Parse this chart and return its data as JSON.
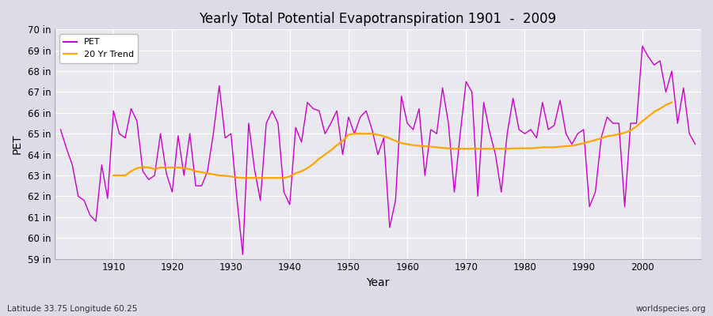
{
  "title": "Yearly Total Potential Evapotranspiration 1901  -  2009",
  "xlabel": "Year",
  "ylabel": "PET",
  "subtitle_lat_lon": "Latitude 33.75 Longitude 60.25",
  "watermark": "worldspecies.org",
  "ylim": [
    59,
    70
  ],
  "yticks": [
    59,
    60,
    61,
    62,
    63,
    64,
    65,
    66,
    67,
    68,
    69,
    70
  ],
  "ytick_labels": [
    "59 in",
    "60 in",
    "61 in",
    "62 in",
    "63 in",
    "64 in",
    "65 in",
    "66 in",
    "67 in",
    "68 in",
    "69 in",
    "70 in"
  ],
  "pet_color": "#CC00CC",
  "trend_color": "#FFA500",
  "bg_color": "#E8E8EE",
  "fig_bg_color": "#DCDCE8",
  "pet_years": [
    1901,
    1902,
    1903,
    1904,
    1905,
    1906,
    1907,
    1908,
    1909,
    1910,
    1911,
    1912,
    1913,
    1914,
    1915,
    1916,
    1917,
    1918,
    1919,
    1920,
    1921,
    1922,
    1923,
    1924,
    1925,
    1926,
    1927,
    1928,
    1929,
    1930,
    1931,
    1932,
    1933,
    1934,
    1935,
    1936,
    1937,
    1938,
    1939,
    1940,
    1941,
    1942,
    1943,
    1944,
    1945,
    1946,
    1947,
    1948,
    1949,
    1950,
    1951,
    1952,
    1953,
    1954,
    1955,
    1956,
    1957,
    1958,
    1959,
    1960,
    1961,
    1962,
    1963,
    1964,
    1965,
    1966,
    1967,
    1968,
    1969,
    1970,
    1971,
    1972,
    1973,
    1974,
    1975,
    1976,
    1977,
    1978,
    1979,
    1980,
    1981,
    1982,
    1983,
    1984,
    1985,
    1986,
    1987,
    1988,
    1989,
    1990,
    1991,
    1992,
    1993,
    1994,
    1995,
    1996,
    1997,
    1998,
    1999,
    2000,
    2001,
    2002,
    2003,
    2004,
    2005,
    2006,
    2007,
    2008,
    2009
  ],
  "pet_values": [
    65.2,
    64.3,
    63.5,
    62.0,
    61.8,
    61.1,
    60.8,
    63.5,
    61.9,
    66.1,
    65.0,
    64.8,
    66.2,
    65.6,
    63.2,
    62.8,
    63.0,
    65.0,
    63.1,
    62.2,
    64.9,
    63.0,
    65.0,
    62.5,
    62.5,
    63.2,
    65.0,
    67.3,
    64.8,
    65.0,
    61.9,
    59.2,
    65.5,
    63.3,
    61.8,
    65.5,
    66.1,
    65.5,
    62.2,
    61.6,
    65.3,
    64.6,
    66.5,
    66.2,
    66.1,
    65.0,
    65.5,
    66.1,
    64.0,
    65.8,
    65.0,
    65.8,
    66.1,
    65.2,
    64.0,
    64.8,
    60.5,
    61.8,
    66.8,
    65.5,
    65.2,
    66.2,
    63.0,
    65.2,
    65.0,
    67.2,
    65.5,
    62.2,
    65.0,
    67.5,
    67.0,
    62.0,
    66.5,
    65.1,
    64.0,
    62.2,
    65.0,
    66.7,
    65.2,
    65.0,
    65.2,
    64.8,
    66.5,
    65.2,
    65.4,
    66.6,
    65.0,
    64.5,
    65.0,
    65.2,
    61.5,
    62.2,
    64.8,
    65.8,
    65.5,
    65.5,
    61.5,
    65.5,
    65.5,
    69.2,
    68.7,
    68.3,
    68.5,
    67.0,
    68.0,
    65.5,
    67.2,
    65.0,
    64.5
  ],
  "trend_years": [
    1910,
    1911,
    1912,
    1913,
    1914,
    1915,
    1916,
    1917,
    1918,
    1919,
    1920,
    1921,
    1922,
    1923,
    1924,
    1925,
    1926,
    1927,
    1928,
    1929,
    1930,
    1931,
    1932,
    1933,
    1934,
    1935,
    1936,
    1937,
    1938,
    1939,
    1940,
    1941,
    1942,
    1943,
    1944,
    1945,
    1946,
    1947,
    1948,
    1949,
    1950,
    1951,
    1952,
    1953,
    1954,
    1955,
    1956,
    1957,
    1958,
    1959,
    1960,
    1961,
    1962,
    1963,
    1964,
    1965,
    1966,
    1967,
    1968,
    1969,
    1970,
    1971,
    1972,
    1973,
    1974,
    1975,
    1976,
    1977,
    1978,
    1979,
    1980,
    1981,
    1982,
    1983,
    1984,
    1985,
    1986,
    1987,
    1988,
    1989,
    1990,
    1991,
    1992,
    1993,
    1994,
    1995,
    1996,
    1997,
    1998,
    1999,
    2000,
    2001,
    2002,
    2003,
    2004,
    2005
  ],
  "trend_values": [
    63.0,
    63.0,
    63.0,
    63.2,
    63.35,
    63.4,
    63.38,
    63.3,
    63.38,
    63.38,
    63.38,
    63.38,
    63.35,
    63.3,
    63.2,
    63.15,
    63.1,
    63.05,
    63.0,
    62.98,
    62.95,
    62.9,
    62.88,
    62.88,
    62.88,
    62.88,
    62.88,
    62.88,
    62.88,
    62.88,
    62.95,
    63.1,
    63.2,
    63.35,
    63.55,
    63.8,
    64.0,
    64.2,
    64.45,
    64.65,
    64.95,
    65.0,
    65.0,
    65.0,
    65.0,
    64.95,
    64.88,
    64.78,
    64.65,
    64.55,
    64.5,
    64.45,
    64.42,
    64.4,
    64.38,
    64.35,
    64.32,
    64.3,
    64.28,
    64.28,
    64.28,
    64.28,
    64.28,
    64.28,
    64.28,
    64.28,
    64.28,
    64.28,
    64.3,
    64.3,
    64.3,
    64.3,
    64.32,
    64.35,
    64.35,
    64.35,
    64.38,
    64.4,
    64.42,
    64.48,
    64.55,
    64.62,
    64.7,
    64.78,
    64.88,
    64.92,
    64.98,
    65.05,
    65.15,
    65.35,
    65.6,
    65.82,
    66.05,
    66.2,
    66.38,
    66.5
  ]
}
